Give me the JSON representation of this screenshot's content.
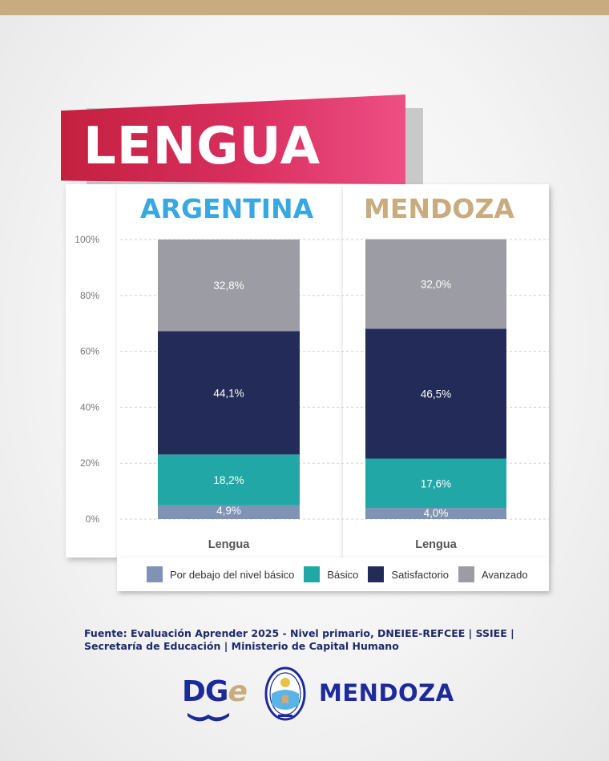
{
  "title": "LENGUA",
  "colors": {
    "below_basic": "#7f93b4",
    "basic": "#21a8a6",
    "satisfactory": "#232c58",
    "advanced": "#9c9ca4",
    "argentina_title": "#3aa8e0",
    "mendoza_title": "#c8ab7e",
    "banner": "#d93060"
  },
  "chart_data": [
    {
      "type": "bar",
      "stacked": true,
      "title": "ARGENTINA",
      "categories": [
        "Lengua"
      ],
      "ylim": [
        0,
        100
      ],
      "yticks": [
        "0%",
        "20%",
        "40%",
        "60%",
        "80%",
        "100%"
      ],
      "grid": true,
      "legend_position": "bottom",
      "series": [
        {
          "name": "Por debajo del nivel básico",
          "values": [
            4.9
          ],
          "label": "4,9%"
        },
        {
          "name": "Básico",
          "values": [
            18.2
          ],
          "label": "18,2%"
        },
        {
          "name": "Satisfactorio",
          "values": [
            44.1
          ],
          "label": "44,1%"
        },
        {
          "name": "Avanzado",
          "values": [
            32.8
          ],
          "label": "32,8%"
        }
      ]
    },
    {
      "type": "bar",
      "stacked": true,
      "title": "MENDOZA",
      "categories": [
        "Lengua"
      ],
      "ylim": [
        0,
        100
      ],
      "grid": true,
      "legend_position": "bottom",
      "series": [
        {
          "name": "Por debajo del nivel básico",
          "values": [
            4.0
          ],
          "label": "4,0%"
        },
        {
          "name": "Básico",
          "values": [
            17.6
          ],
          "label": "17,6%"
        },
        {
          "name": "Satisfactorio",
          "values": [
            46.5
          ],
          "label": "46,5%"
        },
        {
          "name": "Avanzado",
          "values": [
            32.0
          ],
          "label": "32,0%"
        }
      ]
    }
  ],
  "legend": [
    {
      "label": "Por debajo del nivel básico",
      "color": "#7f93b4"
    },
    {
      "label": "Básico",
      "color": "#21a8a6"
    },
    {
      "label": "Satisfactorio",
      "color": "#232c58"
    },
    {
      "label": "Avanzado",
      "color": "#9c9ca4"
    }
  ],
  "source": "Fuente: Evaluación Aprender 2025 - Nivel primario, DNEIEE-REFCEE | SSIEE | Secretaría de Educación | Ministerio de Capital Humano",
  "footer": {
    "dge_prefix": "DG",
    "dge_suffix": "e",
    "brand": "MENDOZA"
  }
}
